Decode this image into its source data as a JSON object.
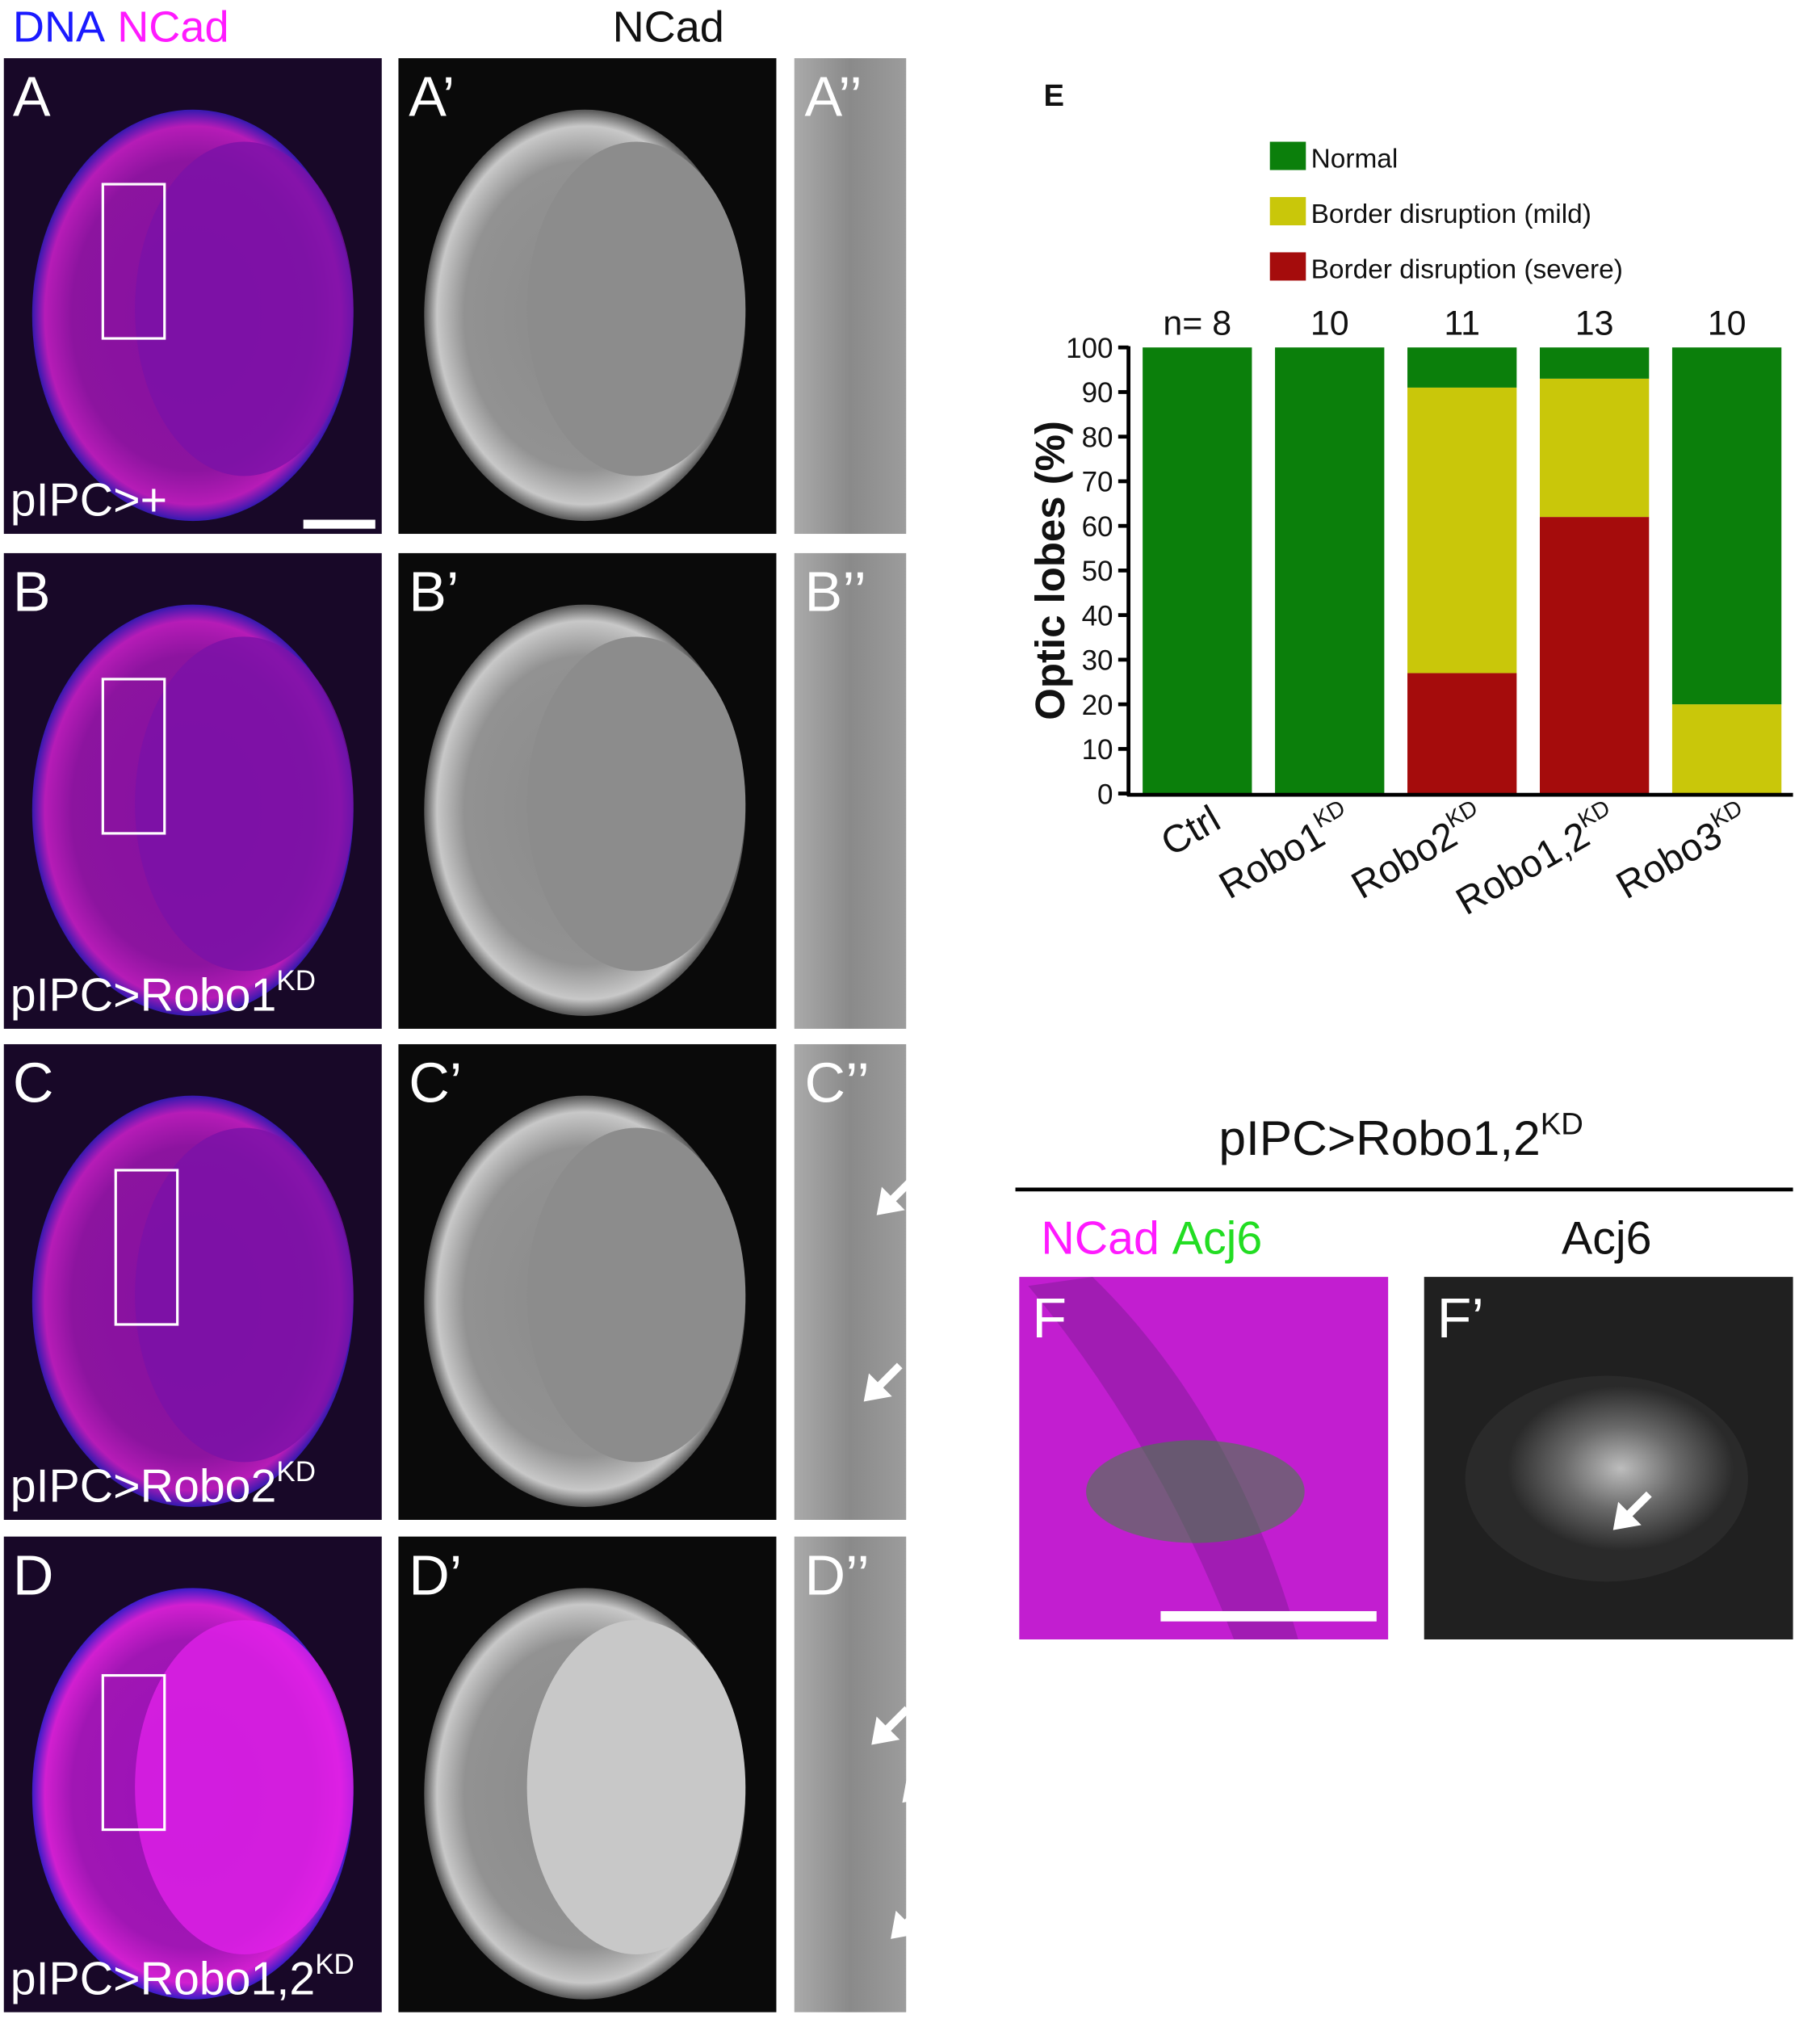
{
  "figure": {
    "header_dna": "DNA",
    "header_ncad": "NCad",
    "header_ncad_gray": "NCad",
    "rows": [
      {
        "labels": [
          "A",
          "A’",
          "A’’"
        ],
        "genotype": "pIPC>+"
      },
      {
        "labels": [
          "B",
          "B’",
          "B’’"
        ],
        "genotype": "pIPC>Robo1",
        "genotype_sup": "KD"
      },
      {
        "labels": [
          "C",
          "C’",
          "C’’"
        ],
        "genotype": "pIPC>Robo2",
        "genotype_sup": "KD"
      },
      {
        "labels": [
          "D",
          "D’",
          "D’’"
        ],
        "genotype": "pIPC>Robo1,2",
        "genotype_sup": "KD"
      }
    ],
    "f_title": "pIPC>Robo1,2",
    "f_title_sup": "KD",
    "f_header_ncad": "NCad",
    "f_header_acj6": "Acj6",
    "f2_header": "Acj6",
    "f_labels": [
      "F",
      "F’"
    ]
  },
  "chart_data": {
    "type": "stacked_bar",
    "panel_label": "E",
    "ylabel": "Optic lobes (%)",
    "categories": [
      "Ctrl",
      "Robo1",
      "Robo2",
      "Robo1,2",
      "Robo3"
    ],
    "category_superscripts": [
      null,
      "KD",
      "KD",
      "KD",
      "KD"
    ],
    "n_labels": [
      "n= 8",
      "10",
      "11",
      "13",
      "10"
    ],
    "series": [
      {
        "name": "Normal",
        "color": "#0b7f0b",
        "values": [
          100,
          100,
          9,
          7,
          80
        ]
      },
      {
        "name": "Border disruption (mild)",
        "color": "#c9c70a",
        "values": [
          0,
          0,
          64,
          31,
          20
        ]
      },
      {
        "name": "Border disruption (severe)",
        "color": "#a50c0c",
        "values": [
          0,
          0,
          27,
          62,
          0
        ]
      }
    ],
    "ylim": [
      0,
      100
    ],
    "yticks": [
      0,
      10,
      20,
      30,
      40,
      50,
      60,
      70,
      80,
      90,
      100
    ],
    "legend": "top"
  }
}
